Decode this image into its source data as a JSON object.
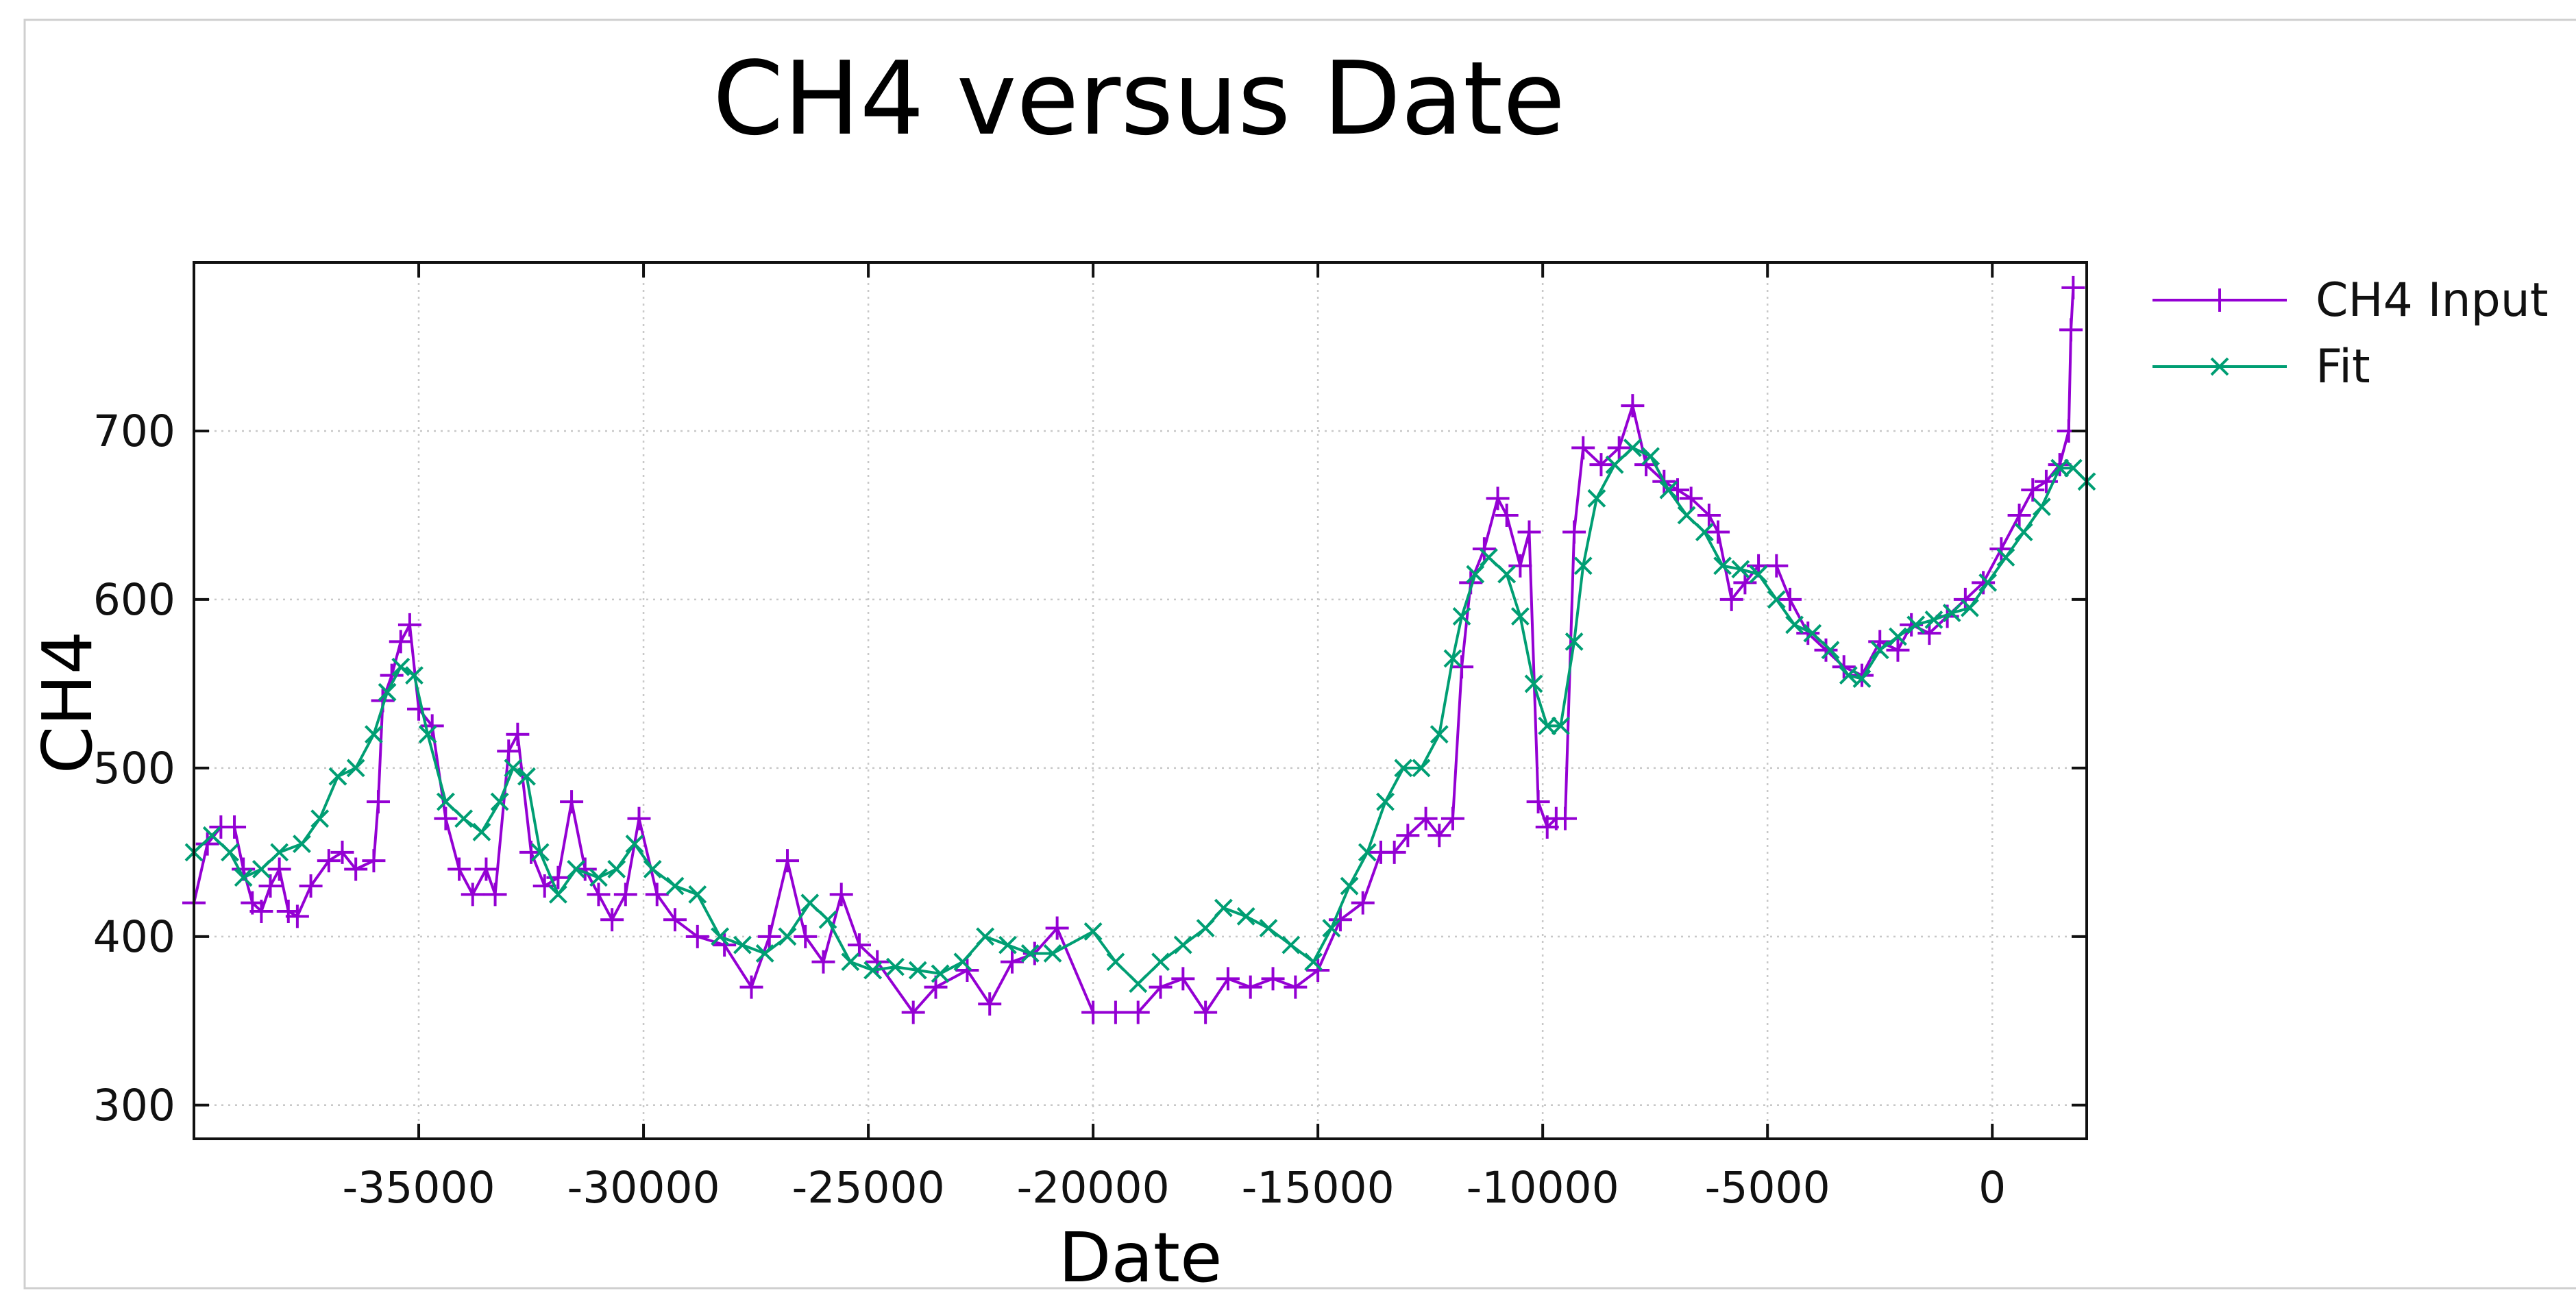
{
  "chart_data": {
    "type": "line",
    "title": "CH4 versus Date",
    "xlabel": "Date",
    "ylabel": "CH4",
    "xlim": [
      -40000,
      2100
    ],
    "ylim": [
      280,
      800
    ],
    "xticks": [
      -35000,
      -30000,
      -25000,
      -20000,
      -15000,
      -10000,
      -5000,
      0
    ],
    "yticks": [
      300,
      400,
      500,
      600,
      700
    ],
    "grid": true,
    "legend_position": "outside-top-right",
    "colors": {
      "input": "#9400d3",
      "fit": "#009e73"
    },
    "series": [
      {
        "name": "CH4 Input",
        "marker": "plus",
        "x": [
          -40000,
          -39700,
          -39400,
          -39100,
          -38900,
          -38700,
          -38500,
          -38300,
          -38100,
          -37900,
          -37700,
          -37400,
          -37000,
          -36700,
          -36400,
          -36000,
          -35900,
          -35800,
          -35600,
          -35400,
          -35200,
          -35000,
          -34700,
          -34400,
          -34100,
          -33800,
          -33500,
          -33300,
          -33000,
          -32800,
          -32500,
          -32200,
          -31900,
          -31600,
          -31300,
          -31000,
          -30700,
          -30400,
          -30100,
          -29700,
          -29300,
          -28800,
          -28200,
          -27600,
          -27200,
          -26800,
          -26400,
          -26000,
          -25600,
          -25200,
          -24800,
          -24000,
          -23500,
          -22800,
          -22300,
          -21800,
          -21300,
          -20800,
          -20000,
          -19500,
          -19000,
          -18500,
          -18000,
          -17500,
          -17000,
          -16500,
          -16000,
          -15500,
          -15000,
          -14500,
          -14000,
          -13600,
          -13300,
          -13000,
          -12600,
          -12300,
          -12000,
          -11800,
          -11600,
          -11300,
          -11000,
          -10800,
          -10500,
          -10300,
          -10100,
          -9900,
          -9700,
          -9500,
          -9300,
          -9100,
          -8700,
          -8300,
          -8000,
          -7700,
          -7300,
          -7000,
          -6700,
          -6300,
          -6100,
          -5800,
          -5500,
          -5200,
          -4800,
          -4500,
          -4100,
          -3700,
          -3300,
          -2900,
          -2500,
          -2100,
          -1800,
          -1400,
          -1000,
          -600,
          -200,
          200,
          600,
          900,
          1200,
          1500,
          1700,
          1750,
          1800
        ],
        "y": [
          420,
          455,
          465,
          465,
          440,
          420,
          415,
          430,
          440,
          415,
          412,
          430,
          445,
          450,
          440,
          445,
          480,
          540,
          555,
          575,
          585,
          535,
          525,
          470,
          440,
          425,
          440,
          425,
          510,
          520,
          450,
          430,
          435,
          480,
          440,
          425,
          410,
          425,
          470,
          425,
          410,
          400,
          395,
          370,
          400,
          445,
          400,
          385,
          425,
          395,
          385,
          355,
          370,
          380,
          360,
          385,
          390,
          405,
          355,
          355,
          355,
          370,
          375,
          355,
          375,
          370,
          375,
          370,
          380,
          410,
          420,
          450,
          450,
          460,
          470,
          460,
          470,
          560,
          610,
          630,
          660,
          650,
          620,
          640,
          480,
          465,
          470,
          470,
          640,
          690,
          680,
          690,
          715,
          680,
          670,
          665,
          660,
          650,
          640,
          600,
          610,
          620,
          620,
          600,
          580,
          570,
          560,
          555,
          575,
          570,
          585,
          580,
          590,
          600,
          610,
          630,
          650,
          665,
          670,
          680,
          700,
          760,
          785
        ]
      },
      {
        "name": "Fit",
        "marker": "cross",
        "x": [
          -40000,
          -39600,
          -39200,
          -38900,
          -38500,
          -38100,
          -37600,
          -37200,
          -36800,
          -36400,
          -36000,
          -35700,
          -35400,
          -35100,
          -34800,
          -34400,
          -34000,
          -33600,
          -33200,
          -32900,
          -32600,
          -32300,
          -31900,
          -31500,
          -31000,
          -30600,
          -30200,
          -29800,
          -29300,
          -28800,
          -28300,
          -27800,
          -27300,
          -26800,
          -26300,
          -25900,
          -25400,
          -24900,
          -24400,
          -23900,
          -23400,
          -22900,
          -22400,
          -21900,
          -21400,
          -20900,
          -20000,
          -19500,
          -19000,
          -18500,
          -18000,
          -17500,
          -17100,
          -16600,
          -16100,
          -15600,
          -15100,
          -14700,
          -14300,
          -13900,
          -13500,
          -13100,
          -12700,
          -12300,
          -12000,
          -11800,
          -11500,
          -11200,
          -10800,
          -10500,
          -10200,
          -9900,
          -9600,
          -9300,
          -9100,
          -8800,
          -8400,
          -8000,
          -7600,
          -7200,
          -6800,
          -6400,
          -6000,
          -5600,
          -5200,
          -4800,
          -4400,
          -4000,
          -3600,
          -3200,
          -2900,
          -2500,
          -2100,
          -1700,
          -1300,
          -900,
          -500,
          -100,
          300,
          700,
          1100,
          1500,
          1800,
          2100
        ],
        "y": [
          450,
          460,
          450,
          435,
          440,
          450,
          455,
          470,
          495,
          500,
          520,
          545,
          560,
          555,
          520,
          480,
          470,
          462,
          480,
          500,
          495,
          450,
          425,
          440,
          435,
          440,
          455,
          440,
          430,
          425,
          400,
          395,
          390,
          400,
          420,
          410,
          385,
          380,
          382,
          380,
          378,
          385,
          400,
          395,
          390,
          390,
          403,
          385,
          372,
          385,
          395,
          405,
          417,
          412,
          405,
          395,
          385,
          405,
          430,
          450,
          480,
          500,
          500,
          520,
          565,
          590,
          615,
          625,
          615,
          590,
          550,
          525,
          525,
          575,
          620,
          660,
          680,
          690,
          685,
          665,
          650,
          640,
          620,
          618,
          615,
          600,
          585,
          580,
          570,
          555,
          553,
          570,
          578,
          585,
          588,
          592,
          595,
          610,
          625,
          640,
          655,
          678,
          678,
          670
        ]
      }
    ]
  }
}
